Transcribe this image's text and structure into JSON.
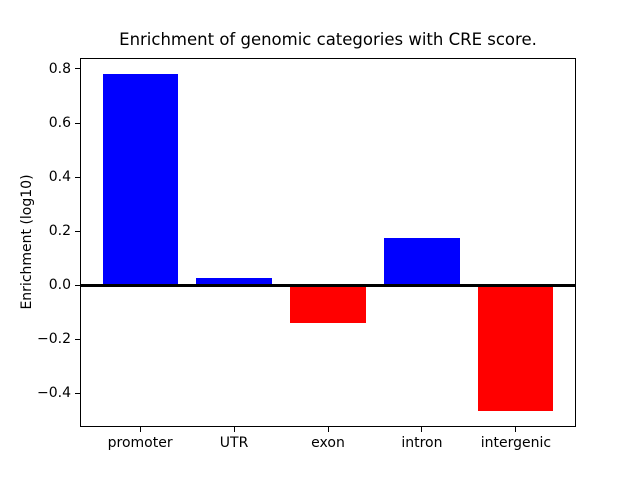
{
  "chart_data": {
    "type": "bar",
    "title": "Enrichment of genomic categories with CRE score.",
    "xlabel": "",
    "ylabel": "Enrichment (log10)",
    "categories": [
      "promoter",
      "UTR",
      "exon",
      "intron",
      "intergenic"
    ],
    "values": [
      0.78,
      0.026,
      -0.14,
      0.175,
      -0.465
    ],
    "positive_color": "#0000ff",
    "negative_color": "#ff0000",
    "color_rule": "blue if value >= 0 else red",
    "yticks": [
      {
        "value": 0.8,
        "label": "0.8"
      },
      {
        "value": 0.6,
        "label": "0.6"
      },
      {
        "value": 0.4,
        "label": "0.4"
      },
      {
        "value": 0.2,
        "label": "0.2"
      },
      {
        "value": 0.0,
        "label": "0.0"
      },
      {
        "value": -0.2,
        "label": "−0.2"
      },
      {
        "value": -0.4,
        "label": "−0.4"
      }
    ],
    "ylim": [
      -0.525,
      0.842
    ],
    "xlim": [
      -0.64,
      4.64
    ],
    "bar_width": 0.8,
    "grid": false,
    "legend": null,
    "zero_line": {
      "y": 0,
      "color": "#000000"
    },
    "axis_color": "#000000",
    "background_color": "#ffffff"
  }
}
